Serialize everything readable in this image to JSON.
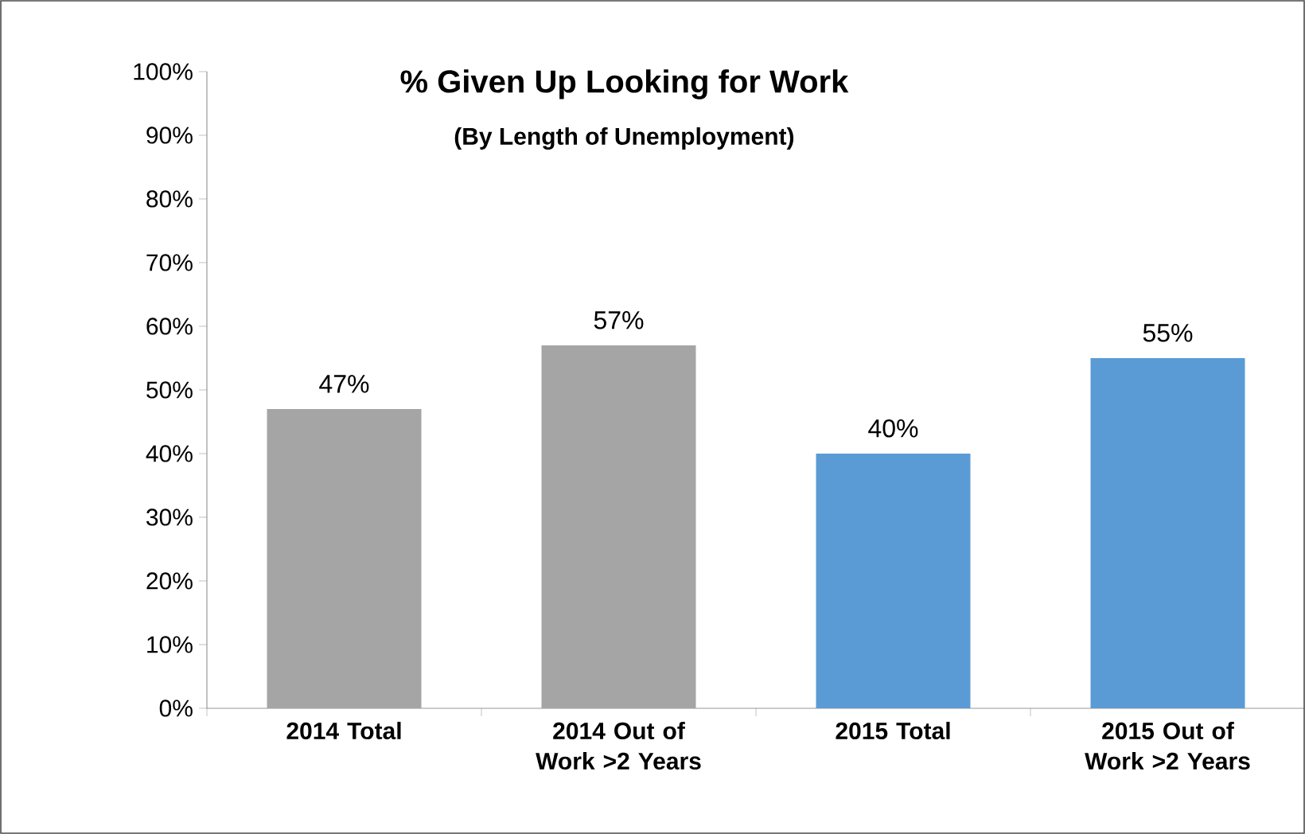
{
  "chart_data": {
    "type": "bar",
    "title": "% Given Up Looking for Work",
    "subtitle": "(By Length of Unemployment)",
    "categories": [
      "2014 Total",
      "2014 Out of Work >2 Years",
      "2015 Total",
      "2015 Out of Work >2 Years"
    ],
    "values": [
      47,
      57,
      40,
      55
    ],
    "colors": [
      "#a5a5a5",
      "#a5a5a5",
      "#5b9bd5",
      "#5b9bd5"
    ],
    "value_labels": [
      "47%",
      "57%",
      "40%",
      "55%"
    ],
    "ylim": [
      0,
      100
    ],
    "yticks": [
      {
        "value": 0,
        "label": "0%"
      },
      {
        "value": 10,
        "label": "10%"
      },
      {
        "value": 20,
        "label": "20%"
      },
      {
        "value": 30,
        "label": "30%"
      },
      {
        "value": 40,
        "label": "40%"
      },
      {
        "value": 50,
        "label": "50%"
      },
      {
        "value": 60,
        "label": "60%"
      },
      {
        "value": 70,
        "label": "70%"
      },
      {
        "value": 80,
        "label": "80%"
      },
      {
        "value": 90,
        "label": "90%"
      },
      {
        "value": 100,
        "label": "100%"
      }
    ],
    "grid": false
  }
}
